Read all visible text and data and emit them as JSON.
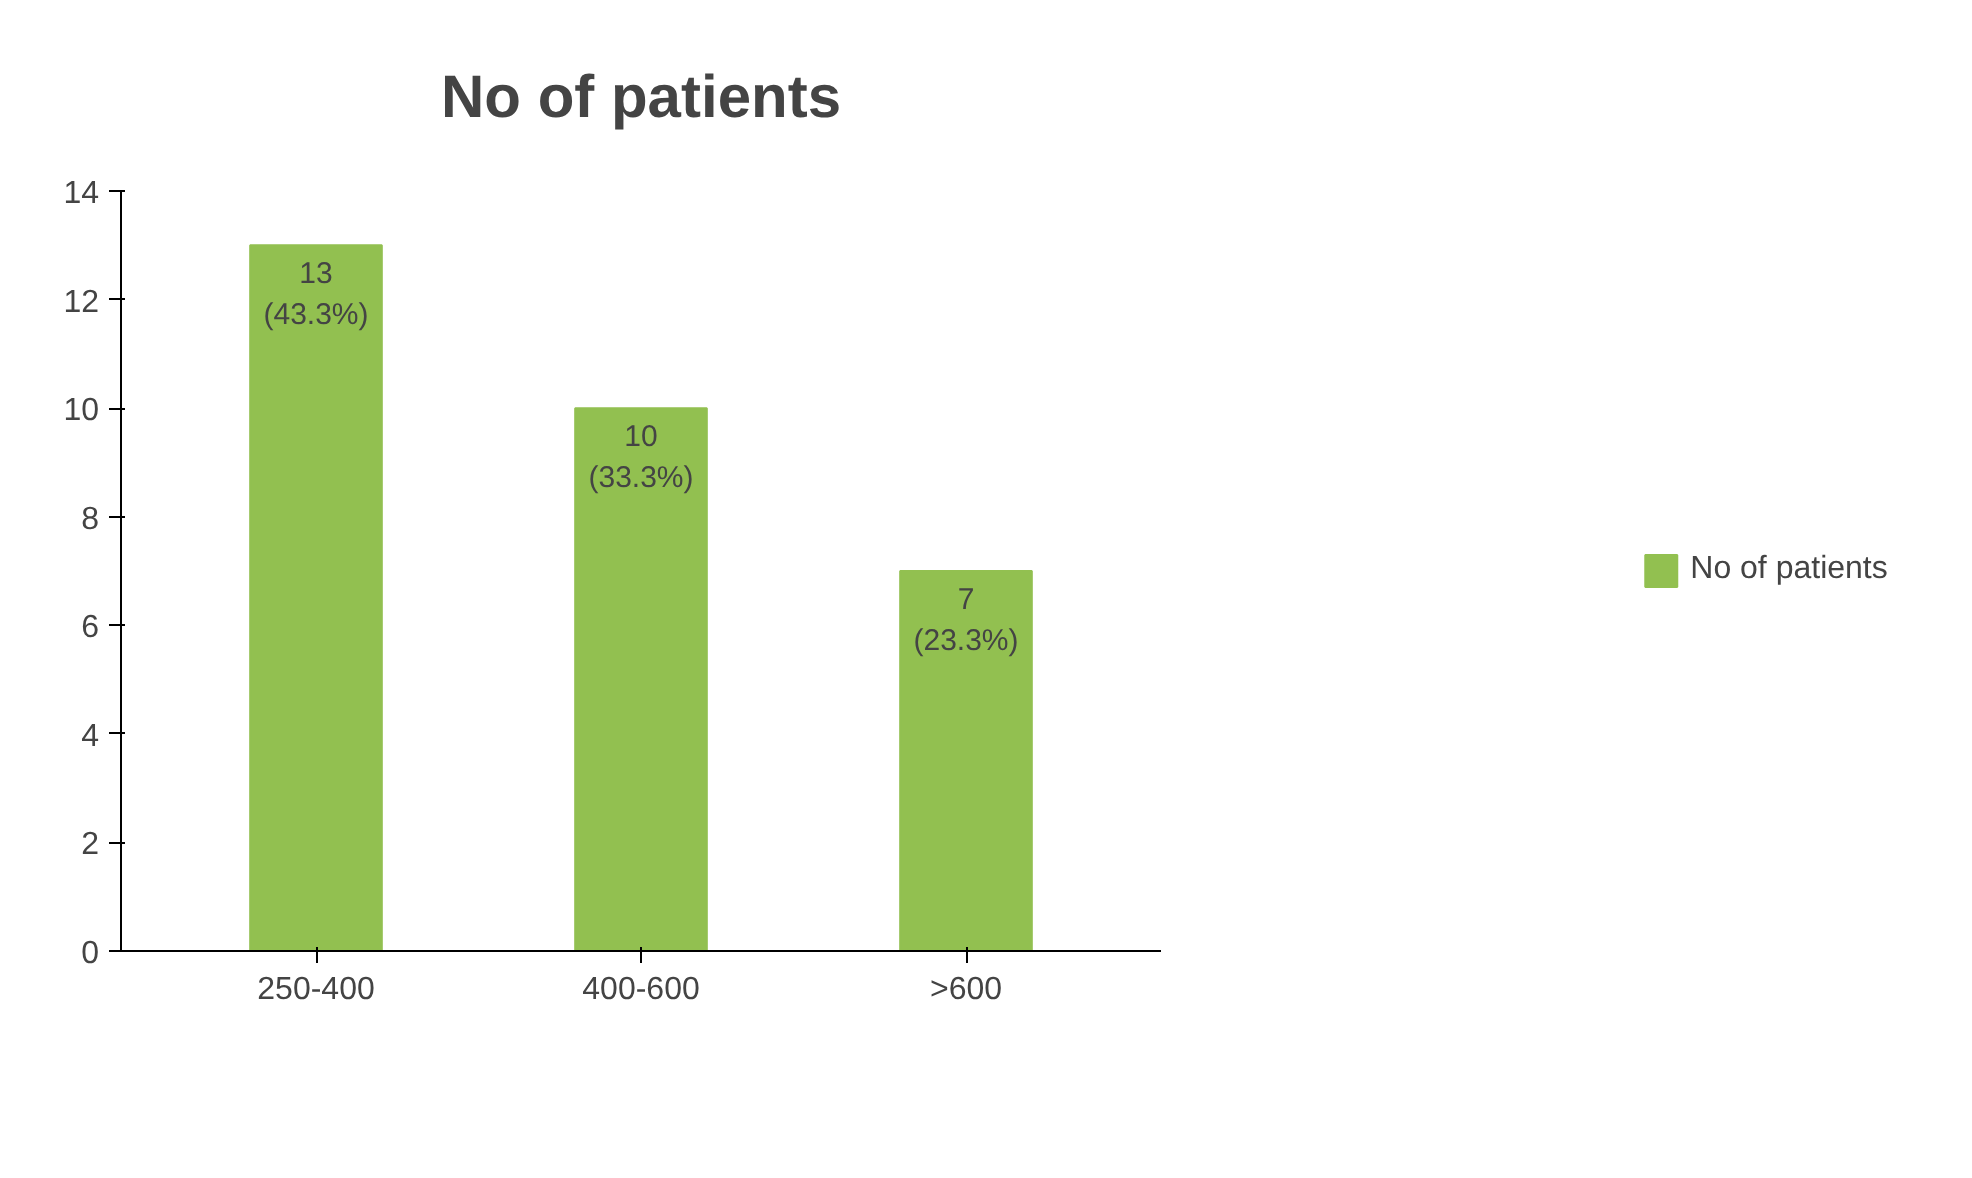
{
  "chart_data": {
    "type": "bar",
    "title": "No of patients",
    "categories": [
      "250-400",
      "400-600",
      ">600"
    ],
    "series": [
      {
        "name": "No of patients",
        "color": "#92c050",
        "values": [
          13,
          10,
          7
        ],
        "value_labels": [
          "13\n(43.3%)",
          "10\n(33.3%)",
          "7\n(23.3%)"
        ]
      }
    ],
    "ylim": [
      0,
      14
    ],
    "yticks": [
      0,
      2,
      4,
      6,
      8,
      10,
      12,
      14
    ],
    "grid": false,
    "legend": "right"
  }
}
